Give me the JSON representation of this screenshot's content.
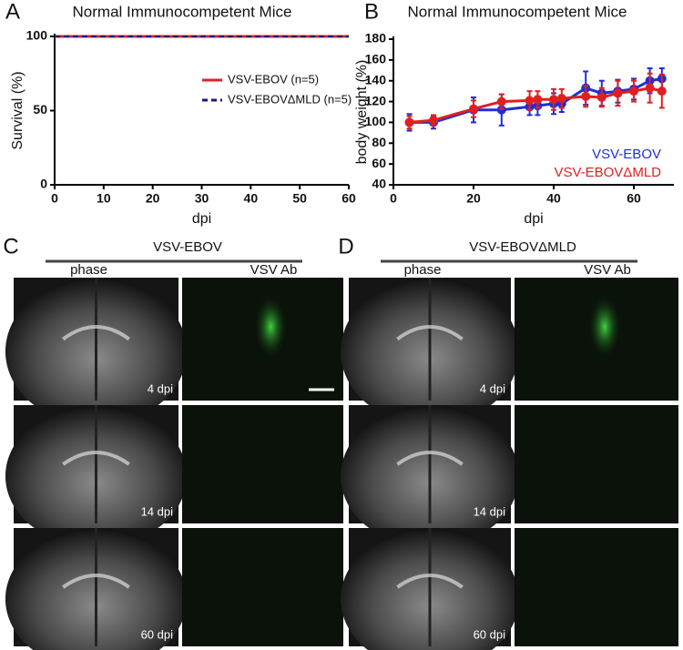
{
  "chart_data": [
    {
      "panel": "A",
      "type": "line",
      "title": "Normal Immunocompetent Mice",
      "xlabel": "dpi",
      "ylabel": "Survival (%)",
      "x": [
        0,
        60
      ],
      "series": [
        {
          "name": "VSV-EBOV (n=5)",
          "color": "#e0202a",
          "values": [
            100,
            100
          ]
        },
        {
          "name": "VSV-EBOVΔMLD (n=5)",
          "color": "#1a1a7a",
          "dash": true,
          "values": [
            100,
            100
          ]
        }
      ],
      "xlim": [
        0,
        60
      ],
      "xticks": [
        0,
        10,
        20,
        30,
        40,
        50,
        60
      ],
      "ylim": [
        0,
        100
      ],
      "yticks": [
        0,
        50,
        100
      ],
      "legend": "upper right"
    },
    {
      "panel": "B",
      "type": "line",
      "title": "Normal Immunocompetent Mice",
      "xlabel": "dpi",
      "ylabel": "body weight (%)",
      "x": [
        4,
        10,
        20,
        27,
        34,
        36,
        40,
        42,
        48,
        52,
        56,
        60,
        64,
        67
      ],
      "series": [
        {
          "name": "VSV-EBOV",
          "color": "#1f2fd6",
          "values": [
            100,
            100,
            112,
            112,
            115,
            116,
            118,
            118,
            133,
            128,
            130,
            132,
            140,
            142
          ],
          "errors": [
            8,
            6,
            12,
            15,
            8,
            9,
            10,
            8,
            16,
            12,
            11,
            10,
            12,
            10
          ]
        },
        {
          "name": "VSV-EBOVΔMLD",
          "color": "#e02020",
          "values": [
            100,
            102,
            113,
            120,
            121,
            122,
            122,
            123,
            125,
            124,
            128,
            130,
            133,
            130
          ],
          "errors": [
            6,
            5,
            8,
            7,
            9,
            8,
            10,
            9,
            10,
            9,
            12,
            10,
            14,
            16
          ]
        }
      ],
      "xlim": [
        0,
        70
      ],
      "xticks": [
        0,
        20,
        40,
        60
      ],
      "ylim": [
        40,
        180
      ],
      "yticks": [
        40,
        60,
        80,
        100,
        120,
        140,
        160,
        180
      ],
      "legend": "lower right",
      "markers": true
    }
  ],
  "panels": [
    {
      "label": "C",
      "title": "VSV-EBOV",
      "columns": [
        "phase",
        "VSV Ab"
      ],
      "rows": [
        "4 dpi",
        "14 dpi",
        "60 dpi"
      ]
    },
    {
      "label": "D",
      "title": "VSV-EBOVΔMLD",
      "columns": [
        "phase",
        "VSV Ab"
      ],
      "rows": [
        "4 dpi",
        "14 dpi",
        "60 dpi"
      ]
    }
  ]
}
